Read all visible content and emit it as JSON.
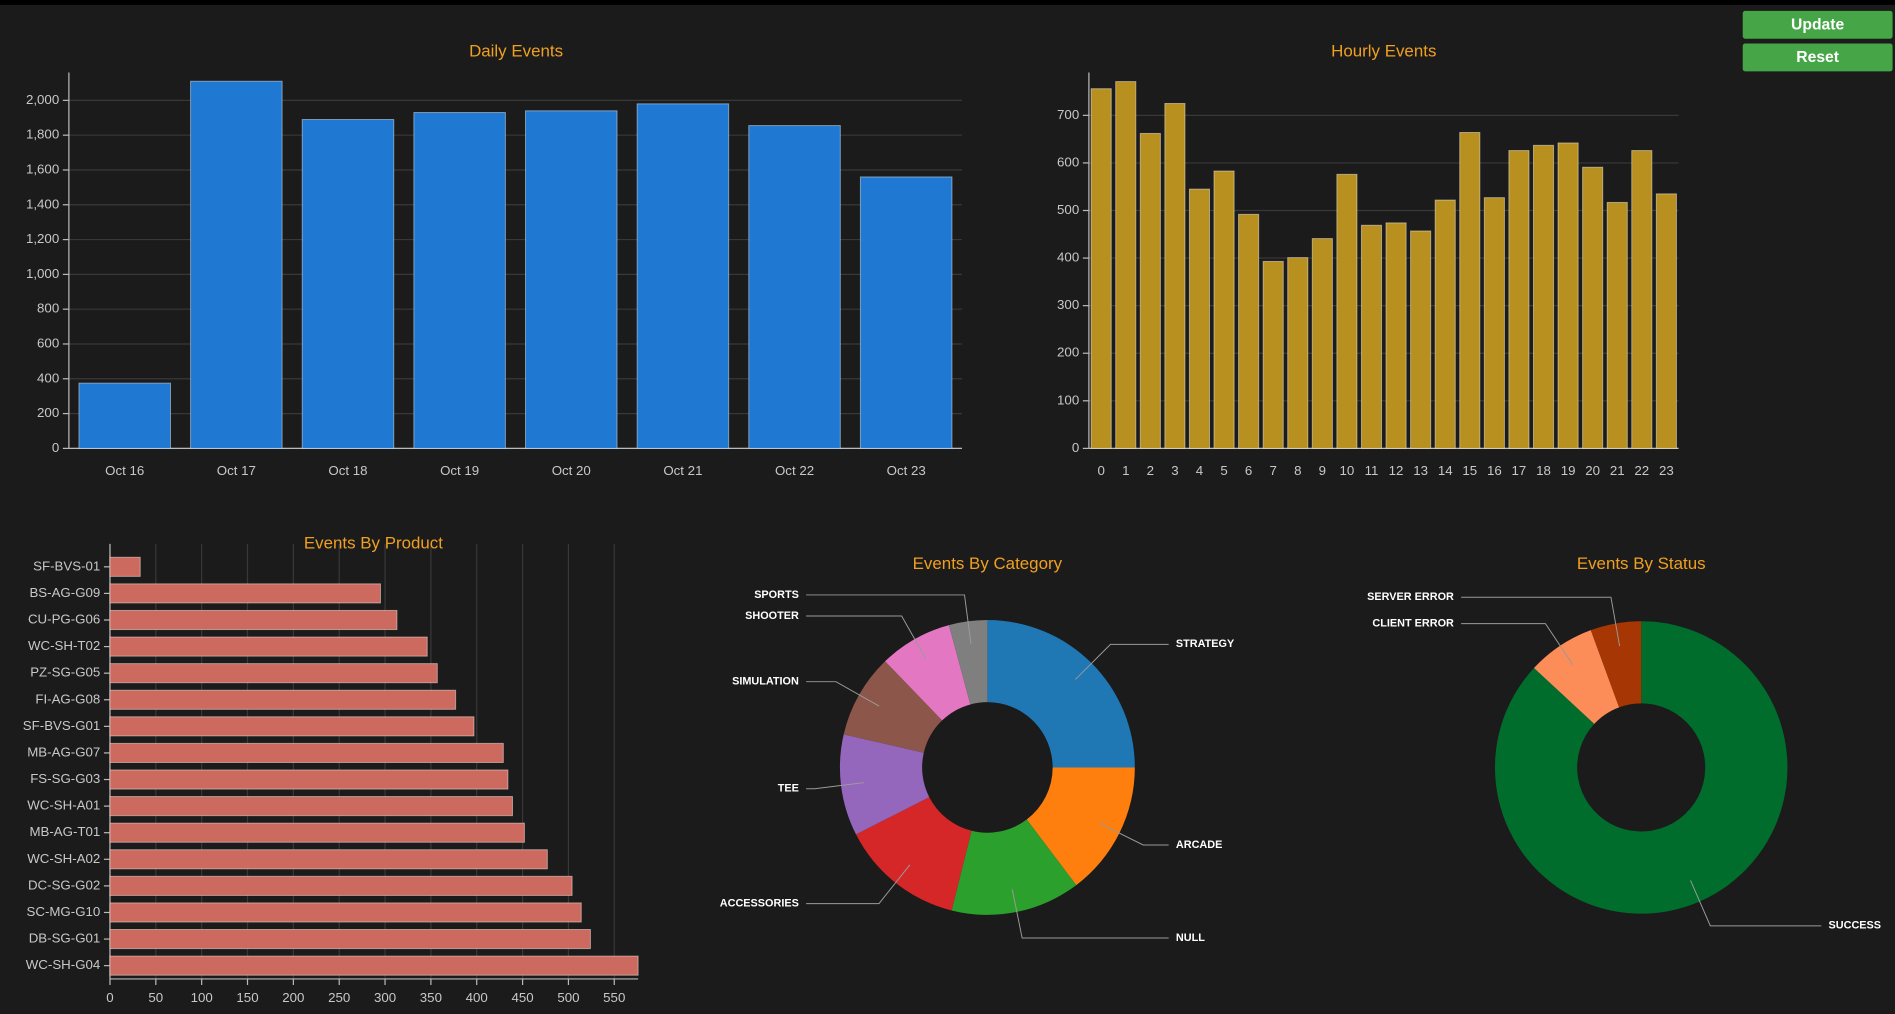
{
  "buttons": [
    "Update",
    "Reset"
  ],
  "chart_data": [
    {
      "type": "bar",
      "title": "Daily Events",
      "categories": [
        "Oct 16",
        "Oct 17",
        "Oct 18",
        "Oct 19",
        "Oct 20",
        "Oct 21",
        "Oct 22",
        "Oct 23"
      ],
      "values": [
        375,
        2110,
        1890,
        1930,
        1940,
        1980,
        1855,
        1560
      ],
      "color": "#1f78d1",
      "ylim": [
        0,
        2160
      ],
      "yticks": [
        0,
        200,
        400,
        600,
        800,
        {
          "value": 1000,
          "label": "1,000"
        },
        {
          "value": 1200,
          "label": "1,200"
        },
        {
          "value": 1400,
          "label": "1,400"
        },
        {
          "value": 1600,
          "label": "1,600"
        },
        {
          "value": 1800,
          "label": "1,800"
        },
        {
          "value": 2000,
          "label": "2,000"
        }
      ],
      "grid": true
    },
    {
      "type": "bar",
      "title": "Hourly Events",
      "categories": [
        0,
        1,
        2,
        3,
        4,
        5,
        6,
        7,
        8,
        9,
        10,
        11,
        12,
        13,
        14,
        15,
        16,
        17,
        18,
        19,
        20,
        21,
        22,
        23
      ],
      "values": [
        756,
        771,
        662,
        725,
        545,
        583,
        492,
        393,
        401,
        441,
        576,
        469,
        474,
        457,
        522,
        664,
        527,
        626,
        637,
        642,
        591,
        517,
        626,
        535
      ],
      "color": "#b8901f",
      "ylim": [
        0,
        790
      ],
      "yticks": [
        0,
        100,
        200,
        300,
        400,
        500,
        600,
        700
      ],
      "grid": true
    },
    {
      "type": "hbar",
      "title": "Events By Product",
      "categories": [
        "SF-BVS-01",
        "BS-AG-G09",
        "CU-PG-G06",
        "WC-SH-T02",
        "PZ-SG-G05",
        "FI-AG-G08",
        "SF-BVS-G01",
        "MB-AG-G07",
        "FS-SG-G03",
        "WC-SH-A01",
        "MB-AG-T01",
        "WC-SH-A02",
        "DC-SG-G02",
        "SC-MG-G10",
        "DB-SG-G01",
        "WC-SH-G04"
      ],
      "values": [
        33,
        295,
        313,
        346,
        357,
        377,
        397,
        429,
        434,
        439,
        452,
        477,
        504,
        514,
        524,
        576
      ],
      "color": "#cd6a5f",
      "xlim": [
        0,
        576
      ],
      "xticks": [
        0,
        50,
        100,
        150,
        200,
        250,
        300,
        350,
        400,
        450,
        500,
        550
      ],
      "grid": true
    },
    {
      "type": "donut",
      "title": "Events By Category",
      "categories": [
        "STRATEGY",
        "ARCADE",
        "NULL",
        "ACCESSORIES",
        "TEE",
        "SIMULATION",
        "SHOOTER",
        "SPORTS"
      ],
      "values": [
        25,
        14.7,
        14.2,
        13.6,
        11.1,
        9.2,
        8.0,
        4.2
      ],
      "colors": [
        "#1f77b4",
        "#ff7f0e",
        "#2ca02c",
        "#d62728",
        "#9467bd",
        "#8c564b",
        "#e377c2",
        "#7f7f7f"
      ]
    },
    {
      "type": "donut",
      "title": "Events By Status",
      "categories": [
        "SUCCESS",
        "CLIENT ERROR",
        "SERVER ERROR"
      ],
      "values": [
        86.9,
        7.5,
        5.6
      ],
      "colors": [
        "#006d2c",
        "#fc8d59",
        "#a63603"
      ]
    }
  ]
}
